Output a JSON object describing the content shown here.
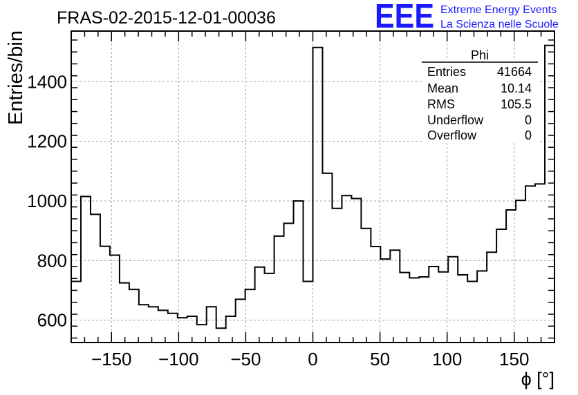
{
  "header": {
    "title": "FRAS-02-2015-12-01-00036",
    "logo_text": "EEE",
    "logo_line1": "Extreme Energy Events",
    "logo_line2": "La Scienza nelle Scuole",
    "logo_color": "#1a1aff"
  },
  "stats_box": {
    "title": "Phi",
    "rows": [
      {
        "label": "Entries",
        "value": "41664"
      },
      {
        "label": "Mean",
        "value": "10.14"
      },
      {
        "label": "RMS",
        "value": "105.5"
      },
      {
        "label": "Underflow",
        "value": "0"
      },
      {
        "label": "Overflow",
        "value": "0"
      }
    ]
  },
  "chart_data": {
    "type": "bar",
    "style": "step-histogram",
    "title": "FRAS-02-2015-12-01-00036",
    "xlabel": "ϕ [°]",
    "ylabel": "Entries/bin",
    "xlim": [
      -180,
      180
    ],
    "ylim": [
      525,
      1570
    ],
    "grid": true,
    "bin_width": 7.2,
    "x_ticks": [
      -150,
      -100,
      -50,
      0,
      50,
      100,
      150
    ],
    "x_tick_labels": [
      "−150",
      "−100",
      "−50",
      "0",
      "50",
      "100",
      "150"
    ],
    "y_ticks": [
      600,
      800,
      1000,
      1200,
      1400
    ],
    "y_tick_labels": [
      "600",
      "800",
      "1000",
      "1200",
      "1400"
    ],
    "bin_edges": [
      -180,
      -172.8,
      -165.6,
      -158.4,
      -151.2,
      -144,
      -136.8,
      -129.6,
      -122.4,
      -115.2,
      -108,
      -100.8,
      -93.6,
      -86.4,
      -79.2,
      -72,
      -64.8,
      -57.6,
      -50.4,
      -43.2,
      -36,
      -28.8,
      -21.6,
      -14.4,
      -7.2,
      0,
      7.2,
      14.4,
      21.6,
      28.8,
      36,
      43.2,
      50.4,
      57.6,
      64.8,
      72,
      79.2,
      86.4,
      93.6,
      100.8,
      108,
      115.2,
      122.4,
      129.6,
      136.8,
      144,
      151.2,
      158.4,
      165.6,
      172.8,
      180
    ],
    "values": [
      730,
      1015,
      955,
      848,
      818,
      725,
      703,
      652,
      645,
      633,
      623,
      608,
      613,
      585,
      645,
      573,
      613,
      670,
      703,
      778,
      757,
      882,
      925,
      1000,
      730,
      1515,
      1093,
      975,
      1018,
      1008,
      908,
      847,
      805,
      835,
      760,
      742,
      745,
      780,
      762,
      813,
      752,
      730,
      765,
      828,
      905,
      970,
      1002,
      1050,
      1057,
      1522
    ]
  }
}
